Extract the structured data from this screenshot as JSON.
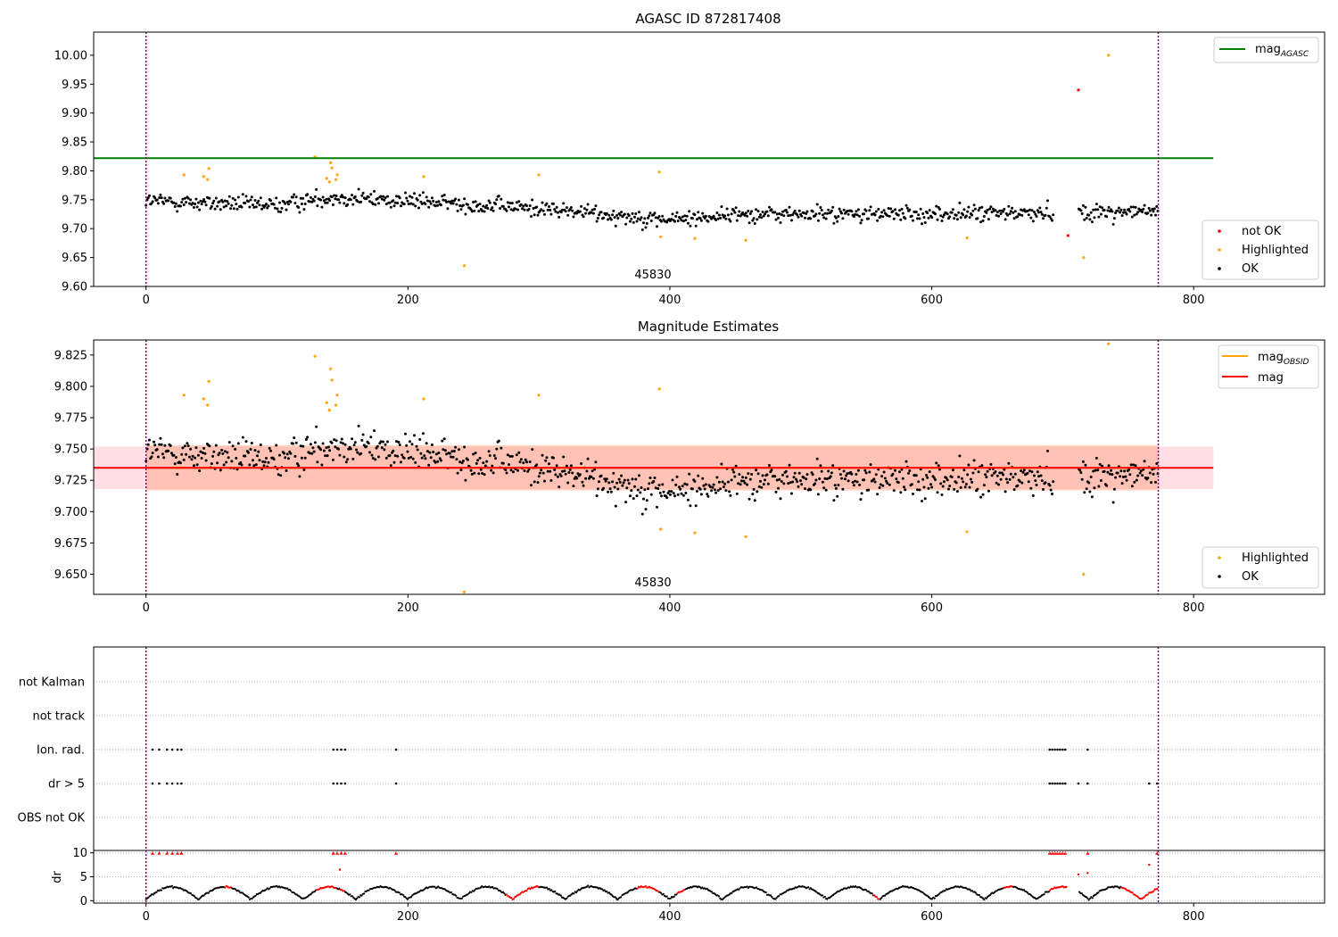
{
  "colors": {
    "ok": "#000000",
    "highlighted": "#ffa500",
    "not_ok": "#ff0000",
    "agasc_line": "#008000",
    "mag_line": "#ff0000",
    "mag_obsid_line": "#ffa500",
    "band_pink": "#ffc0cb",
    "band_orange": "#ffa07a",
    "vline": "#800080"
  },
  "chart_data": [
    {
      "type": "scatter",
      "title": "AGASC ID 872817408",
      "xlim": [
        -40,
        900
      ],
      "ylim": [
        9.6,
        10.04
      ],
      "xticks": [
        "0",
        "200",
        "400",
        "600",
        "800"
      ],
      "yticks": [
        "9.60",
        "9.65",
        "9.70",
        "9.75",
        "9.80",
        "9.85",
        "9.90",
        "9.95",
        "10.00"
      ],
      "vlines": [
        0,
        773
      ],
      "hline": {
        "name": "mag_AGASC",
        "label": "mag",
        "sub": "AGASC",
        "y": 9.822,
        "x": [
          -40,
          815
        ]
      },
      "annotation": {
        "text": "45830",
        "x": 386,
        "y": 9.61
      },
      "ok_trend": {
        "x": [
          0,
          100,
          140,
          200,
          300,
          400,
          450,
          500,
          600,
          700,
          773
        ],
        "y": [
          9.748,
          9.74,
          9.755,
          9.748,
          9.735,
          9.715,
          9.725,
          9.725,
          9.725,
          9.728,
          9.73
        ]
      },
      "highlighted": {
        "x": [
          29,
          44,
          47,
          48,
          129,
          138,
          140,
          141,
          142,
          145,
          146,
          212,
          243,
          300,
          392,
          393,
          419,
          458,
          627,
          716,
          735
        ],
        "y": [
          9.793,
          9.79,
          9.785,
          9.804,
          9.824,
          9.787,
          9.781,
          9.814,
          9.805,
          9.785,
          9.793,
          9.79,
          9.636,
          9.793,
          9.798,
          9.686,
          9.683,
          9.68,
          9.684,
          9.65,
          10.0
        ]
      },
      "not_ok": {
        "x": [
          704,
          712
        ],
        "y": [
          9.688,
          9.94
        ]
      },
      "legends": [
        {
          "position": "top-right",
          "entries": [
            {
              "name": "mag_AGASC",
              "label": "mag",
              "sub": "AGASC",
              "kind": "line"
            }
          ]
        },
        {
          "position": "bottom-right",
          "entries": [
            {
              "name": "not OK",
              "label": "not OK",
              "kind": "dot"
            },
            {
              "name": "Highlighted",
              "label": "Highlighted",
              "kind": "dot"
            },
            {
              "name": "OK",
              "label": "OK",
              "kind": "dot"
            }
          ]
        }
      ]
    },
    {
      "type": "scatter",
      "title": "Magnitude Estimates",
      "xlim": [
        -40,
        900
      ],
      "ylim": [
        9.634,
        9.837
      ],
      "xticks": [
        "0",
        "200",
        "400",
        "600",
        "800"
      ],
      "yticks": [
        "9.650",
        "9.675",
        "9.700",
        "9.725",
        "9.750",
        "9.775",
        "9.800",
        "9.825"
      ],
      "vlines": [
        0,
        773
      ],
      "mag": {
        "name": "mag",
        "label": "mag",
        "y": 9.735,
        "band": [
          9.718,
          9.752
        ],
        "x": [
          -40,
          815
        ]
      },
      "mag_obsid": {
        "name": "mag_OBSID",
        "label": "mag",
        "sub": "OBSID",
        "y": 9.735,
        "band": [
          9.717,
          9.753
        ],
        "x": [
          0,
          773
        ]
      },
      "annotation": {
        "text": "45830",
        "x": 386,
        "y": 9.642
      },
      "ok_trend": {
        "x": [
          0,
          100,
          140,
          200,
          300,
          400,
          450,
          500,
          600,
          700,
          773
        ],
        "y": [
          9.748,
          9.74,
          9.755,
          9.748,
          9.735,
          9.715,
          9.725,
          9.725,
          9.725,
          9.728,
          9.73
        ]
      },
      "highlighted": {
        "x": [
          29,
          44,
          47,
          48,
          129,
          138,
          140,
          141,
          142,
          145,
          146,
          212,
          243,
          300,
          392,
          393,
          419,
          458,
          627,
          716,
          735
        ],
        "y": [
          9.793,
          9.79,
          9.785,
          9.804,
          9.824,
          9.787,
          9.781,
          9.814,
          9.805,
          9.785,
          9.793,
          9.79,
          9.636,
          9.793,
          9.798,
          9.686,
          9.683,
          9.68,
          9.684,
          9.65,
          9.834
        ]
      },
      "legends": [
        {
          "position": "top-right",
          "entries": [
            {
              "name": "mag_OBSID",
              "label": "mag",
              "sub": "OBSID",
              "kind": "line"
            },
            {
              "name": "mag",
              "label": "mag",
              "kind": "line"
            }
          ]
        },
        {
          "position": "bottom-right",
          "entries": [
            {
              "name": "Highlighted",
              "label": "Highlighted",
              "kind": "dot"
            },
            {
              "name": "OK",
              "label": "OK",
              "kind": "dot"
            }
          ]
        }
      ]
    },
    {
      "type": "scatter",
      "title": "",
      "xlim": [
        -40,
        900
      ],
      "xticks": [
        "0",
        "200",
        "400",
        "600",
        "800"
      ],
      "vlines": [
        0,
        773
      ],
      "flag_rows": [
        "not Kalman",
        "not track",
        "Ion. rad.",
        "dr > 5",
        "OBS not OK"
      ],
      "flags": {
        "Ion. rad.": [
          5,
          10,
          16,
          20,
          24,
          27,
          143,
          146,
          149,
          152,
          191,
          690,
          692,
          694,
          696,
          698,
          700,
          702,
          719
        ],
        "dr > 5": [
          5,
          10,
          16,
          20,
          24,
          27,
          143,
          146,
          149,
          152,
          191,
          690,
          692,
          694,
          696,
          698,
          700,
          702,
          712,
          719,
          766,
          772
        ]
      },
      "dr_panel": {
        "ylabel": "dr",
        "yticks": [
          "0",
          "5",
          "10"
        ],
        "ylim": [
          -0.5,
          10.5
        ],
        "clip_value": 10,
        "clipped_x": [
          5,
          10,
          16,
          20,
          24,
          27,
          143,
          146,
          149,
          152,
          191,
          690,
          692,
          694,
          696,
          698,
          700,
          702,
          719,
          772
        ],
        "extra_red": {
          "x": [
            148,
            712,
            719,
            766
          ],
          "y": [
            6.5,
            5.5,
            5.8,
            7.5
          ]
        }
      }
    }
  ]
}
